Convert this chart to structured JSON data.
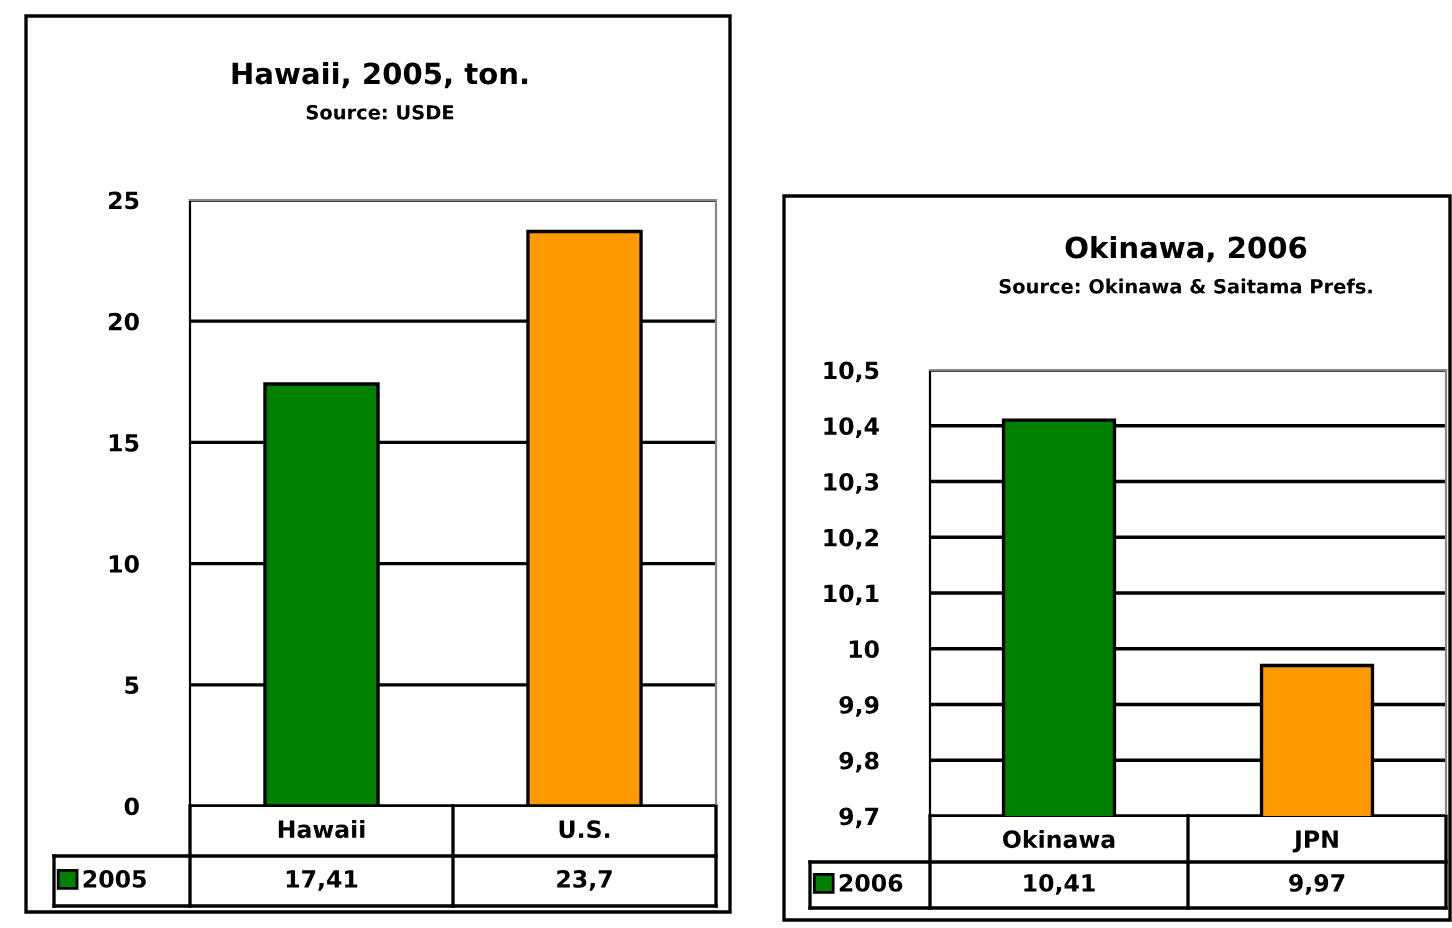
{
  "chart_data": [
    {
      "type": "bar",
      "title": "Hawaii, 2005, ton.",
      "subtitle": "Source: USDE",
      "categories": [
        "Hawaii",
        "U.S."
      ],
      "series": [
        {
          "name": "2005",
          "color": "#008000",
          "colors": [
            "#008000",
            "#ff9900"
          ],
          "values": [
            17.41,
            23.7
          ],
          "value_labels": [
            "17,41",
            "23,7"
          ]
        }
      ],
      "ylim": [
        0,
        25
      ],
      "yticks": [
        0,
        5,
        10,
        15,
        20,
        25
      ],
      "grid": "y",
      "legend": "bottom left"
    },
    {
      "type": "bar",
      "title": "Okinawa, 2006",
      "subtitle": "Source: Okinawa & Saitama Prefs.",
      "categories": [
        "Okinawa",
        "JPN"
      ],
      "series": [
        {
          "name": "2006",
          "color": "#008000",
          "colors": [
            "#008000",
            "#ff9900"
          ],
          "values": [
            10.41,
            9.97
          ],
          "value_labels": [
            "10,41",
            "9,97"
          ]
        }
      ],
      "ylim": [
        9.7,
        10.5
      ],
      "yticks": [
        {
          "value": 9.7,
          "label": "9,7"
        },
        {
          "value": 9.8,
          "label": "9,8"
        },
        {
          "value": 9.9,
          "label": "9,9"
        },
        {
          "value": 10,
          "label": "10"
        },
        {
          "value": 10.1,
          "label": "10,1"
        },
        {
          "value": 10.2,
          "label": "10,2"
        },
        {
          "value": 10.3,
          "label": "10,3"
        },
        {
          "value": 10.4,
          "label": "10,4"
        },
        {
          "value": 10.5,
          "label": "10,5"
        }
      ],
      "grid": "y",
      "legend": "bottom left"
    }
  ]
}
